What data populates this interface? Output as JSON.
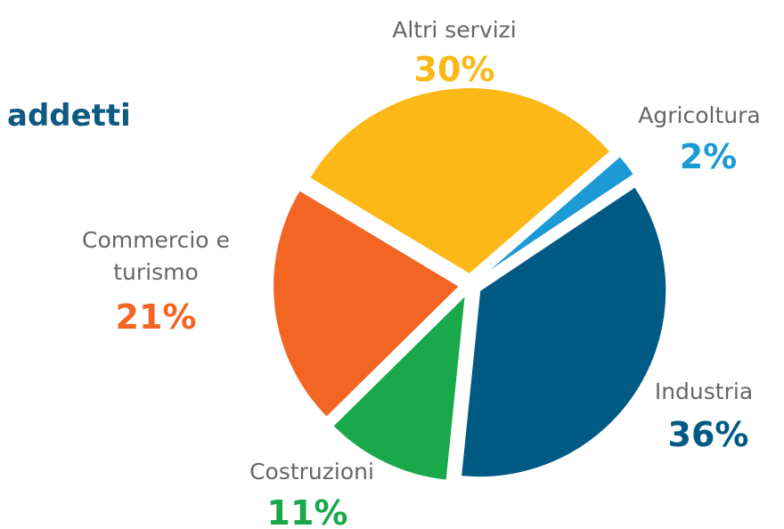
{
  "chart_data": {
    "type": "pie",
    "title": "addetti",
    "categories": [
      "Agricoltura",
      "Industria",
      "Costruzioni",
      "Commercio e turismo",
      "Altri servizi"
    ],
    "values": [
      2,
      36,
      11,
      21,
      30
    ],
    "value_labels": [
      "2%",
      "36%",
      "11%",
      "21%",
      "30%"
    ],
    "colors": [
      "#1b9ad6",
      "#005a84",
      "#19a94b",
      "#f26522",
      "#fbb817"
    ]
  }
}
